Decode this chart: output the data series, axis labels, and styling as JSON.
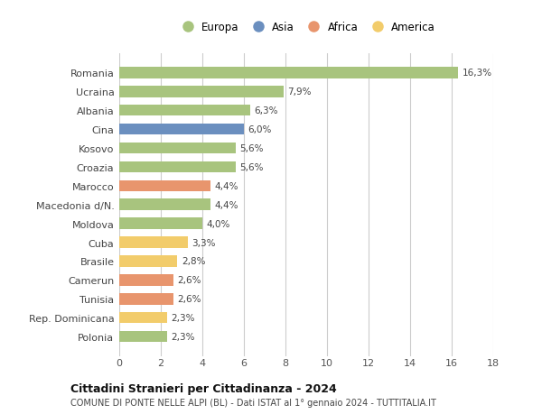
{
  "categories": [
    "Romania",
    "Ucraina",
    "Albania",
    "Cina",
    "Kosovo",
    "Croazia",
    "Marocco",
    "Macedonia d/N.",
    "Moldova",
    "Cuba",
    "Brasile",
    "Camerun",
    "Tunisia",
    "Rep. Dominicana",
    "Polonia"
  ],
  "values": [
    16.3,
    7.9,
    6.3,
    6.0,
    5.6,
    5.6,
    4.4,
    4.4,
    4.0,
    3.3,
    2.8,
    2.6,
    2.6,
    2.3,
    2.3
  ],
  "labels": [
    "16,3%",
    "7,9%",
    "6,3%",
    "6,0%",
    "5,6%",
    "5,6%",
    "4,4%",
    "4,4%",
    "4,0%",
    "3,3%",
    "2,8%",
    "2,6%",
    "2,6%",
    "2,3%",
    "2,3%"
  ],
  "continents": [
    "Europa",
    "Europa",
    "Europa",
    "Asia",
    "Europa",
    "Europa",
    "Africa",
    "Europa",
    "Europa",
    "America",
    "America",
    "Africa",
    "Africa",
    "America",
    "Europa"
  ],
  "colors": {
    "Europa": "#a8c47e",
    "Asia": "#6b8fbf",
    "Africa": "#e8956d",
    "America": "#f2cc6b"
  },
  "legend_order": [
    "Europa",
    "Asia",
    "Africa",
    "America"
  ],
  "xlim": [
    0,
    18
  ],
  "xticks": [
    0,
    2,
    4,
    6,
    8,
    10,
    12,
    14,
    16,
    18
  ],
  "title": "Cittadini Stranieri per Cittadinanza - 2024",
  "subtitle": "COMUNE DI PONTE NELLE ALPI (BL) - Dati ISTAT al 1° gennaio 2024 - TUTTITALIA.IT",
  "bg_color": "#ffffff",
  "grid_color": "#cccccc",
  "bar_height": 0.6
}
